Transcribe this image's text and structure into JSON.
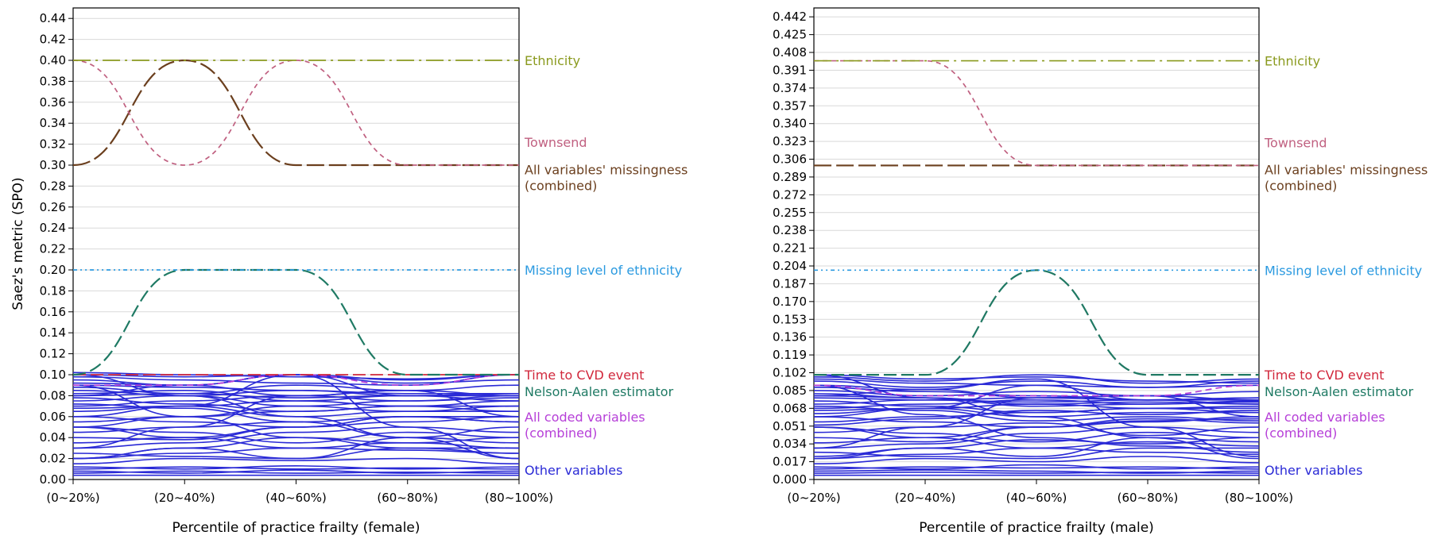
{
  "colors": {
    "ethnicity": "#8a9a1e",
    "townsend": "#c06080",
    "missingness": "#6b3f1e",
    "missing_ethnicity": "#2b9ae0",
    "time_to_cvd": "#d1283c",
    "nelson_aalen": "#1f7a64",
    "coded": "#b63fd8",
    "other": "#2a2ad6",
    "grid": "#d9d9d9",
    "axis": "#000000"
  },
  "chart_data": [
    {
      "type": "line",
      "xlabel": "Percentile of practice frailty (female)",
      "ylabel": "Saez's metric (SPO)",
      "categories": [
        "(0~20%)",
        "(20~40%)",
        "(40~60%)",
        "(60~80%)",
        "(80~100%)"
      ],
      "ylim": [
        0,
        0.45
      ],
      "yticks": [
        "0.00",
        "0.02",
        "0.04",
        "0.06",
        "0.08",
        "0.10",
        "0.12",
        "0.14",
        "0.16",
        "0.18",
        "0.20",
        "0.22",
        "0.24",
        "0.26",
        "0.28",
        "0.30",
        "0.32",
        "0.34",
        "0.36",
        "0.38",
        "0.40",
        "0.42",
        "0.44"
      ],
      "grid": "horizontal",
      "series": [
        {
          "name": "Ethnicity",
          "key": "ethnicity",
          "values": [
            0.4,
            0.4,
            0.4,
            0.4,
            0.4
          ]
        },
        {
          "name": "Townsend",
          "key": "townsend",
          "values": [
            0.4,
            0.3,
            0.4,
            0.3,
            0.3
          ]
        },
        {
          "name": "All variables' missingness (combined)",
          "key": "missingness",
          "values": [
            0.3,
            0.4,
            0.3,
            0.3,
            0.3
          ]
        },
        {
          "name": "Missing level of ethnicity",
          "key": "missing_ethnicity",
          "values": [
            0.2,
            0.2,
            0.2,
            0.2,
            0.2
          ]
        },
        {
          "name": "Time to CVD event",
          "key": "time_to_cvd",
          "values": [
            0.1,
            0.1,
            0.1,
            0.1,
            0.1
          ]
        },
        {
          "name": "Nelson-Aalen estimator",
          "key": "nelson_aalen",
          "values": [
            0.1,
            0.2,
            0.2,
            0.1,
            0.1
          ]
        },
        {
          "name": "All coded variables (combined)",
          "key": "coded",
          "values": [
            0.09,
            0.09,
            0.1,
            0.09,
            0.1
          ]
        },
        {
          "name": "Other variables",
          "key": "other",
          "values": [
            0.01,
            0.01,
            0.01,
            0.01,
            0.01
          ]
        }
      ],
      "other_lines": [
        [
          0.004,
          0.004,
          0.004,
          0.004,
          0.004
        ],
        [
          0.006,
          0.008,
          0.006,
          0.007,
          0.006
        ],
        [
          0.008,
          0.006,
          0.009,
          0.006,
          0.008
        ],
        [
          0.01,
          0.012,
          0.01,
          0.011,
          0.01
        ],
        [
          0.012,
          0.01,
          0.013,
          0.01,
          0.012
        ],
        [
          0.015,
          0.02,
          0.018,
          0.02,
          0.015
        ],
        [
          0.02,
          0.025,
          0.03,
          0.028,
          0.025
        ],
        [
          0.02,
          0.03,
          0.04,
          0.035,
          0.04
        ],
        [
          0.025,
          0.022,
          0.02,
          0.03,
          0.03
        ],
        [
          0.03,
          0.035,
          0.045,
          0.05,
          0.045
        ],
        [
          0.035,
          0.04,
          0.03,
          0.035,
          0.03
        ],
        [
          0.04,
          0.038,
          0.05,
          0.06,
          0.06
        ],
        [
          0.045,
          0.05,
          0.055,
          0.04,
          0.05
        ],
        [
          0.05,
          0.045,
          0.035,
          0.045,
          0.04
        ],
        [
          0.05,
          0.06,
          0.07,
          0.065,
          0.07
        ],
        [
          0.055,
          0.06,
          0.065,
          0.07,
          0.075
        ],
        [
          0.06,
          0.055,
          0.05,
          0.055,
          0.06
        ],
        [
          0.065,
          0.07,
          0.075,
          0.08,
          0.08
        ],
        [
          0.068,
          0.07,
          0.06,
          0.065,
          0.065
        ],
        [
          0.07,
          0.075,
          0.08,
          0.075,
          0.08
        ],
        [
          0.072,
          0.068,
          0.055,
          0.06,
          0.055
        ],
        [
          0.075,
          0.08,
          0.085,
          0.082,
          0.082
        ],
        [
          0.078,
          0.072,
          0.065,
          0.07,
          0.07
        ],
        [
          0.08,
          0.082,
          0.078,
          0.08,
          0.082
        ],
        [
          0.082,
          0.085,
          0.075,
          0.07,
          0.065
        ],
        [
          0.085,
          0.08,
          0.07,
          0.075,
          0.078
        ],
        [
          0.088,
          0.082,
          0.09,
          0.085,
          0.08
        ],
        [
          0.09,
          0.088,
          0.085,
          0.08,
          0.082
        ],
        [
          0.092,
          0.09,
          0.08,
          0.085,
          0.09
        ],
        [
          0.095,
          0.09,
          0.1,
          0.092,
          0.095
        ],
        [
          0.098,
          0.095,
          0.092,
          0.09,
          0.1
        ],
        [
          0.1,
          0.098,
          0.1,
          0.095,
          0.1
        ],
        [
          0.102,
          0.1,
          0.098,
          0.096,
          0.1
        ],
        [
          0.09,
          0.06,
          0.04,
          0.03,
          0.025
        ],
        [
          0.08,
          0.09,
          0.1,
          0.05,
          0.02
        ],
        [
          0.03,
          0.05,
          0.08,
          0.085,
          0.06
        ],
        [
          0.05,
          0.04,
          0.05,
          0.06,
          0.055
        ],
        [
          0.06,
          0.07,
          0.1,
          0.08,
          0.075
        ],
        [
          0.1,
          0.08,
          0.06,
          0.04,
          0.02
        ],
        [
          0.02,
          0.03,
          0.02,
          0.04,
          0.035
        ]
      ]
    },
    {
      "type": "line",
      "xlabel": "Percentile of practice frailty (male)",
      "ylabel": "",
      "categories": [
        "(0~20%)",
        "(20~40%)",
        "(40~60%)",
        "(60~80%)",
        "(80~100%)"
      ],
      "ylim": [
        0,
        0.4505
      ],
      "yticks": [
        "0.000",
        "0.017",
        "0.034",
        "0.051",
        "0.068",
        "0.085",
        "0.102",
        "0.119",
        "0.136",
        "0.153",
        "0.170",
        "0.187",
        "0.204",
        "0.221",
        "0.238",
        "0.255",
        "0.272",
        "0.289",
        "0.306",
        "0.323",
        "0.340",
        "0.357",
        "0.374",
        "0.391",
        "0.408",
        "0.425",
        "0.442"
      ],
      "grid": "horizontal",
      "series": [
        {
          "name": "Ethnicity",
          "key": "ethnicity",
          "values": [
            0.4,
            0.4,
            0.4,
            0.4,
            0.4
          ]
        },
        {
          "name": "Townsend",
          "key": "townsend",
          "values": [
            0.4,
            0.4,
            0.3,
            0.3,
            0.3
          ]
        },
        {
          "name": "All variables' missingness (combined)",
          "key": "missingness",
          "values": [
            0.3,
            0.3,
            0.3,
            0.3,
            0.3
          ]
        },
        {
          "name": "Missing level of ethnicity",
          "key": "missing_ethnicity",
          "values": [
            0.2,
            0.2,
            0.2,
            0.2,
            0.2
          ]
        },
        {
          "name": "Time to CVD event",
          "key": "time_to_cvd",
          "values": [
            0.1,
            0.1,
            0.2,
            0.1,
            0.1
          ]
        },
        {
          "name": "Nelson-Aalen estimator",
          "key": "nelson_aalen",
          "values": [
            0.1,
            0.1,
            0.2,
            0.1,
            0.1
          ]
        },
        {
          "name": "All coded variables (combined)",
          "key": "coded",
          "values": [
            0.09,
            0.08,
            0.08,
            0.08,
            0.09
          ]
        },
        {
          "name": "Other variables",
          "key": "other",
          "values": [
            0.01,
            0.01,
            0.01,
            0.01,
            0.01
          ]
        }
      ],
      "other_lines": [
        [
          0.004,
          0.004,
          0.004,
          0.004,
          0.004
        ],
        [
          0.006,
          0.007,
          0.006,
          0.007,
          0.006
        ],
        [
          0.008,
          0.009,
          0.008,
          0.006,
          0.008
        ],
        [
          0.01,
          0.012,
          0.011,
          0.012,
          0.01
        ],
        [
          0.012,
          0.01,
          0.014,
          0.01,
          0.012
        ],
        [
          0.015,
          0.02,
          0.017,
          0.022,
          0.016
        ],
        [
          0.02,
          0.024,
          0.03,
          0.026,
          0.024
        ],
        [
          0.022,
          0.03,
          0.038,
          0.034,
          0.04
        ],
        [
          0.026,
          0.022,
          0.02,
          0.03,
          0.03
        ],
        [
          0.03,
          0.034,
          0.044,
          0.05,
          0.045
        ],
        [
          0.035,
          0.04,
          0.03,
          0.036,
          0.032
        ],
        [
          0.04,
          0.036,
          0.05,
          0.056,
          0.058
        ],
        [
          0.045,
          0.05,
          0.054,
          0.042,
          0.05
        ],
        [
          0.05,
          0.044,
          0.036,
          0.045,
          0.04
        ],
        [
          0.052,
          0.058,
          0.066,
          0.062,
          0.066
        ],
        [
          0.055,
          0.06,
          0.064,
          0.068,
          0.07
        ],
        [
          0.06,
          0.055,
          0.05,
          0.055,
          0.06
        ],
        [
          0.063,
          0.068,
          0.072,
          0.074,
          0.072
        ],
        [
          0.066,
          0.068,
          0.06,
          0.064,
          0.064
        ],
        [
          0.068,
          0.072,
          0.076,
          0.072,
          0.075
        ],
        [
          0.07,
          0.066,
          0.056,
          0.06,
          0.056
        ],
        [
          0.072,
          0.076,
          0.078,
          0.076,
          0.076
        ],
        [
          0.075,
          0.07,
          0.064,
          0.068,
          0.068
        ],
        [
          0.078,
          0.076,
          0.074,
          0.076,
          0.078
        ],
        [
          0.08,
          0.078,
          0.072,
          0.068,
          0.064
        ],
        [
          0.082,
          0.078,
          0.07,
          0.072,
          0.074
        ],
        [
          0.085,
          0.08,
          0.084,
          0.08,
          0.076
        ],
        [
          0.088,
          0.084,
          0.08,
          0.076,
          0.078
        ],
        [
          0.09,
          0.086,
          0.078,
          0.08,
          0.084
        ],
        [
          0.094,
          0.088,
          0.094,
          0.088,
          0.09
        ],
        [
          0.096,
          0.092,
          0.09,
          0.088,
          0.094
        ],
        [
          0.098,
          0.094,
          0.1,
          0.092,
          0.096
        ],
        [
          0.1,
          0.096,
          0.098,
          0.094,
          0.092
        ],
        [
          0.09,
          0.062,
          0.04,
          0.032,
          0.026
        ],
        [
          0.08,
          0.086,
          0.096,
          0.05,
          0.022
        ],
        [
          0.03,
          0.05,
          0.078,
          0.08,
          0.06
        ],
        [
          0.05,
          0.04,
          0.05,
          0.058,
          0.054
        ],
        [
          0.06,
          0.068,
          0.09,
          0.076,
          0.072
        ],
        [
          0.1,
          0.078,
          0.06,
          0.04,
          0.02
        ],
        [
          0.02,
          0.03,
          0.022,
          0.04,
          0.036
        ]
      ]
    }
  ]
}
